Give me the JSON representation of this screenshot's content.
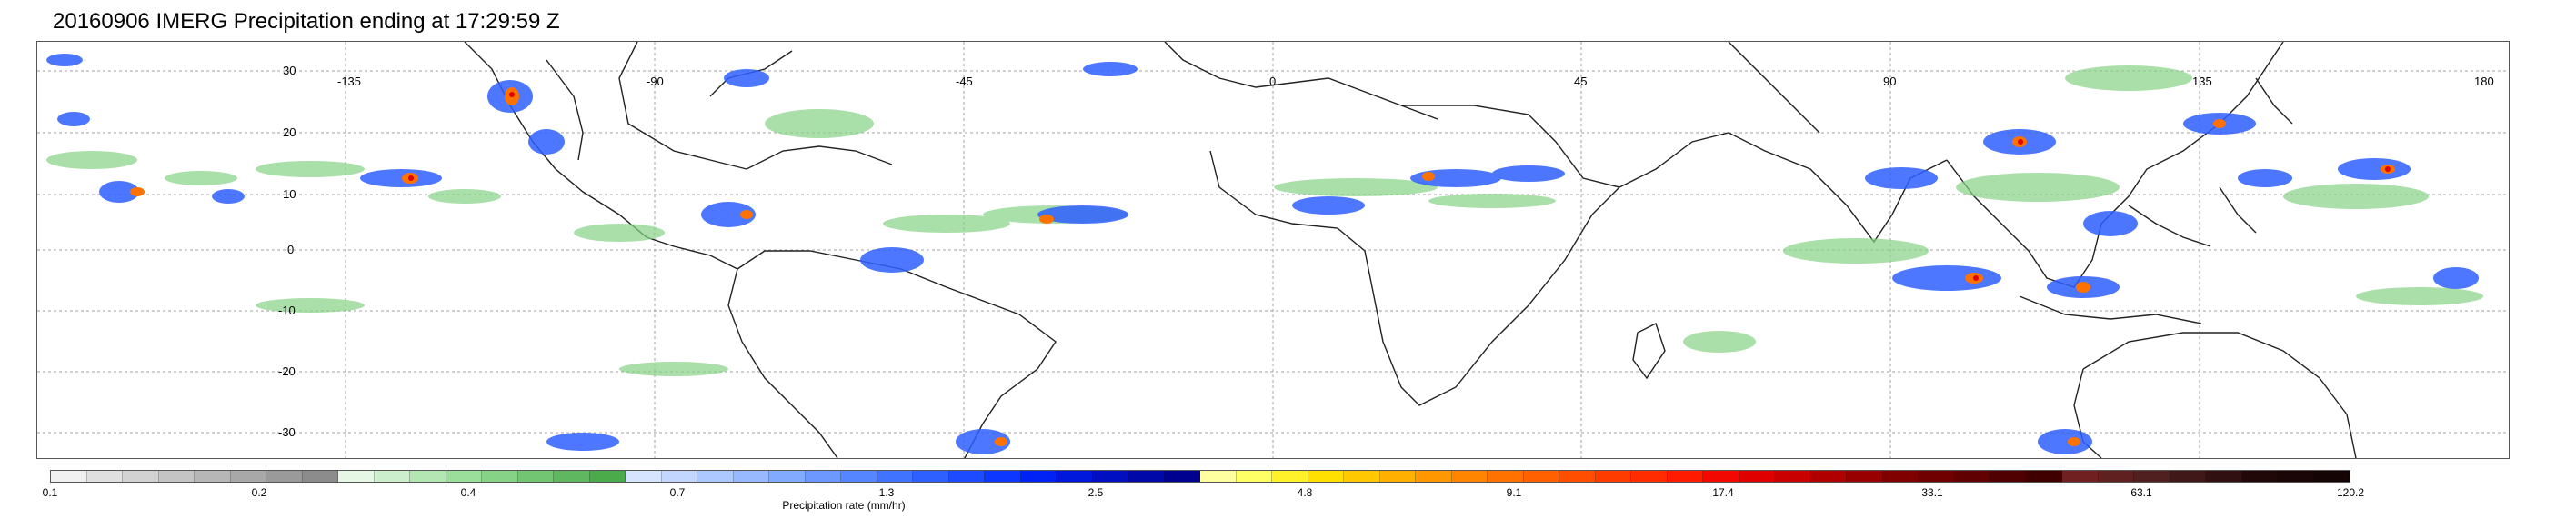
{
  "title": "20160906 IMERG Precipitation ending at 17:29:59 Z",
  "map": {
    "lon_labels": [
      "-135",
      "-90",
      "-45",
      "0",
      "45",
      "90",
      "135",
      "180"
    ],
    "lat_labels": [
      "30",
      "20",
      "10",
      "0",
      "-10",
      "-20",
      "-30"
    ],
    "extent": {
      "lon": [
        -180,
        180
      ],
      "lat": [
        -40,
        40
      ]
    }
  },
  "colorbar": {
    "title": "Precipitation rate (mm/hr)",
    "labels": [
      "0.1",
      "0.2",
      "0.4",
      "0.7",
      "1.3",
      "2.5",
      "4.8",
      "9.1",
      "17.4",
      "33.1",
      "63.1",
      "120.2"
    ],
    "colors": [
      "#f0f0f0",
      "#e0e0e0",
      "#d2d2d2",
      "#c4c4c4",
      "#b6b6b6",
      "#a8a8a8",
      "#9a9a9a",
      "#8c8c8c",
      "#e6f7e6",
      "#cdeecd",
      "#b4e6b4",
      "#9bdd9b",
      "#86d286",
      "#72c572",
      "#5fb85f",
      "#4bab4b",
      "#d6e4ff",
      "#c2d6ff",
      "#adc8ff",
      "#98b9ff",
      "#82aaff",
      "#6c98ff",
      "#5686ff",
      "#4073ff",
      "#2e5fff",
      "#1d4bff",
      "#0d37ff",
      "#0023f5",
      "#0018db",
      "#000fc2",
      "#0008a8",
      "#00028f",
      "#ffffa0",
      "#ffff66",
      "#fff22a",
      "#ffe000",
      "#ffc800",
      "#ffb000",
      "#ff9800",
      "#ff8400",
      "#ff7200",
      "#ff6000",
      "#ff4e00",
      "#ff3c00",
      "#ff2c00",
      "#ff1b00",
      "#f20800",
      "#e00000",
      "#c80000",
      "#b00000",
      "#980000",
      "#800000",
      "#700000",
      "#600000",
      "#500000",
      "#400000",
      "#702020",
      "#602020",
      "#502020",
      "#401818",
      "#301010",
      "#200808",
      "#1a0606",
      "#140404"
    ]
  }
}
